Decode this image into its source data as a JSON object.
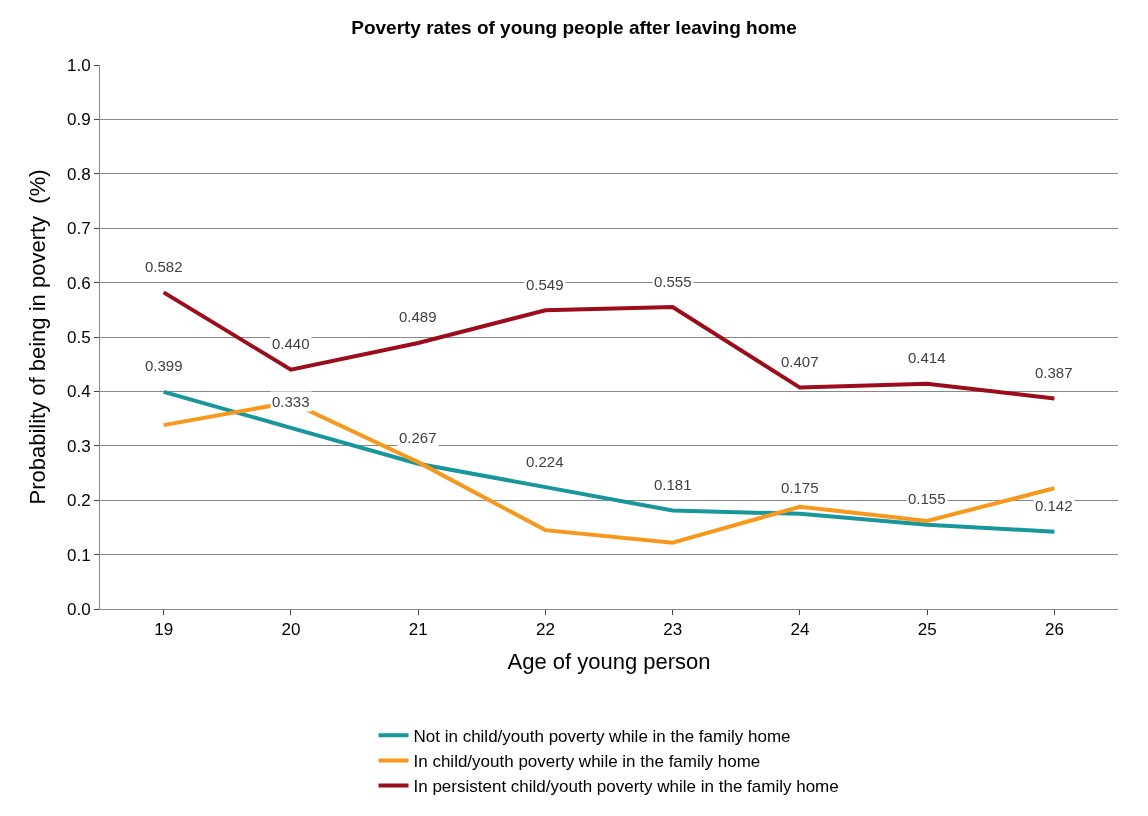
{
  "chart_data": {
    "type": "line",
    "title": "Poverty rates of young people after leaving home",
    "xlabel": "Age of young person",
    "ylabel": "Probability of being in poverty  (%)",
    "categories": [
      "19",
      "20",
      "21",
      "22",
      "23",
      "24",
      "25",
      "26"
    ],
    "series": [
      {
        "name": "Not in child/youth poverty while in the family home",
        "color": "#17979b",
        "values": [
          0.399,
          0.333,
          0.267,
          0.224,
          0.181,
          0.175,
          0.155,
          0.142
        ],
        "value_labels": [
          "0.399",
          "0.333",
          "0.267",
          "0.224",
          "0.181",
          "0.175",
          "0.155",
          "0.142"
        ]
      },
      {
        "name": "In child/youth poverty while in the family home",
        "color": "#f7981d",
        "values": [
          0.338,
          0.38,
          0.27,
          0.145,
          0.122,
          0.188,
          0.162,
          0.222
        ]
      },
      {
        "name": "In persistent child/youth poverty while in the family home",
        "color": "#9b0d1a",
        "values": [
          0.582,
          0.44,
          0.489,
          0.549,
          0.555,
          0.407,
          0.414,
          0.387
        ],
        "value_labels": [
          "0.582",
          "0.440",
          "0.489",
          "0.549",
          "0.555",
          "0.407",
          "0.414",
          "0.387"
        ]
      }
    ],
    "ylim": [
      0,
      1.0
    ],
    "yticks": [
      {
        "value": 0,
        "label": "0.0"
      },
      {
        "value": 0.1,
        "label": "0.1"
      },
      {
        "value": 0.2,
        "label": "0.2"
      },
      {
        "value": 0.3,
        "label": "0.3"
      },
      {
        "value": 0.4,
        "label": "0.4"
      },
      {
        "value": 0.5,
        "label": "0.5"
      },
      {
        "value": 0.6,
        "label": "0.6"
      },
      {
        "value": 0.7,
        "label": "0.7"
      },
      {
        "value": 0.8,
        "label": "0.8"
      },
      {
        "value": 0.9,
        "label": "0.9"
      },
      {
        "value": 1.0,
        "label": "1.0"
      }
    ],
    "grid": "y",
    "legend": "bottom",
    "marker": "none",
    "line_style": "solid"
  }
}
